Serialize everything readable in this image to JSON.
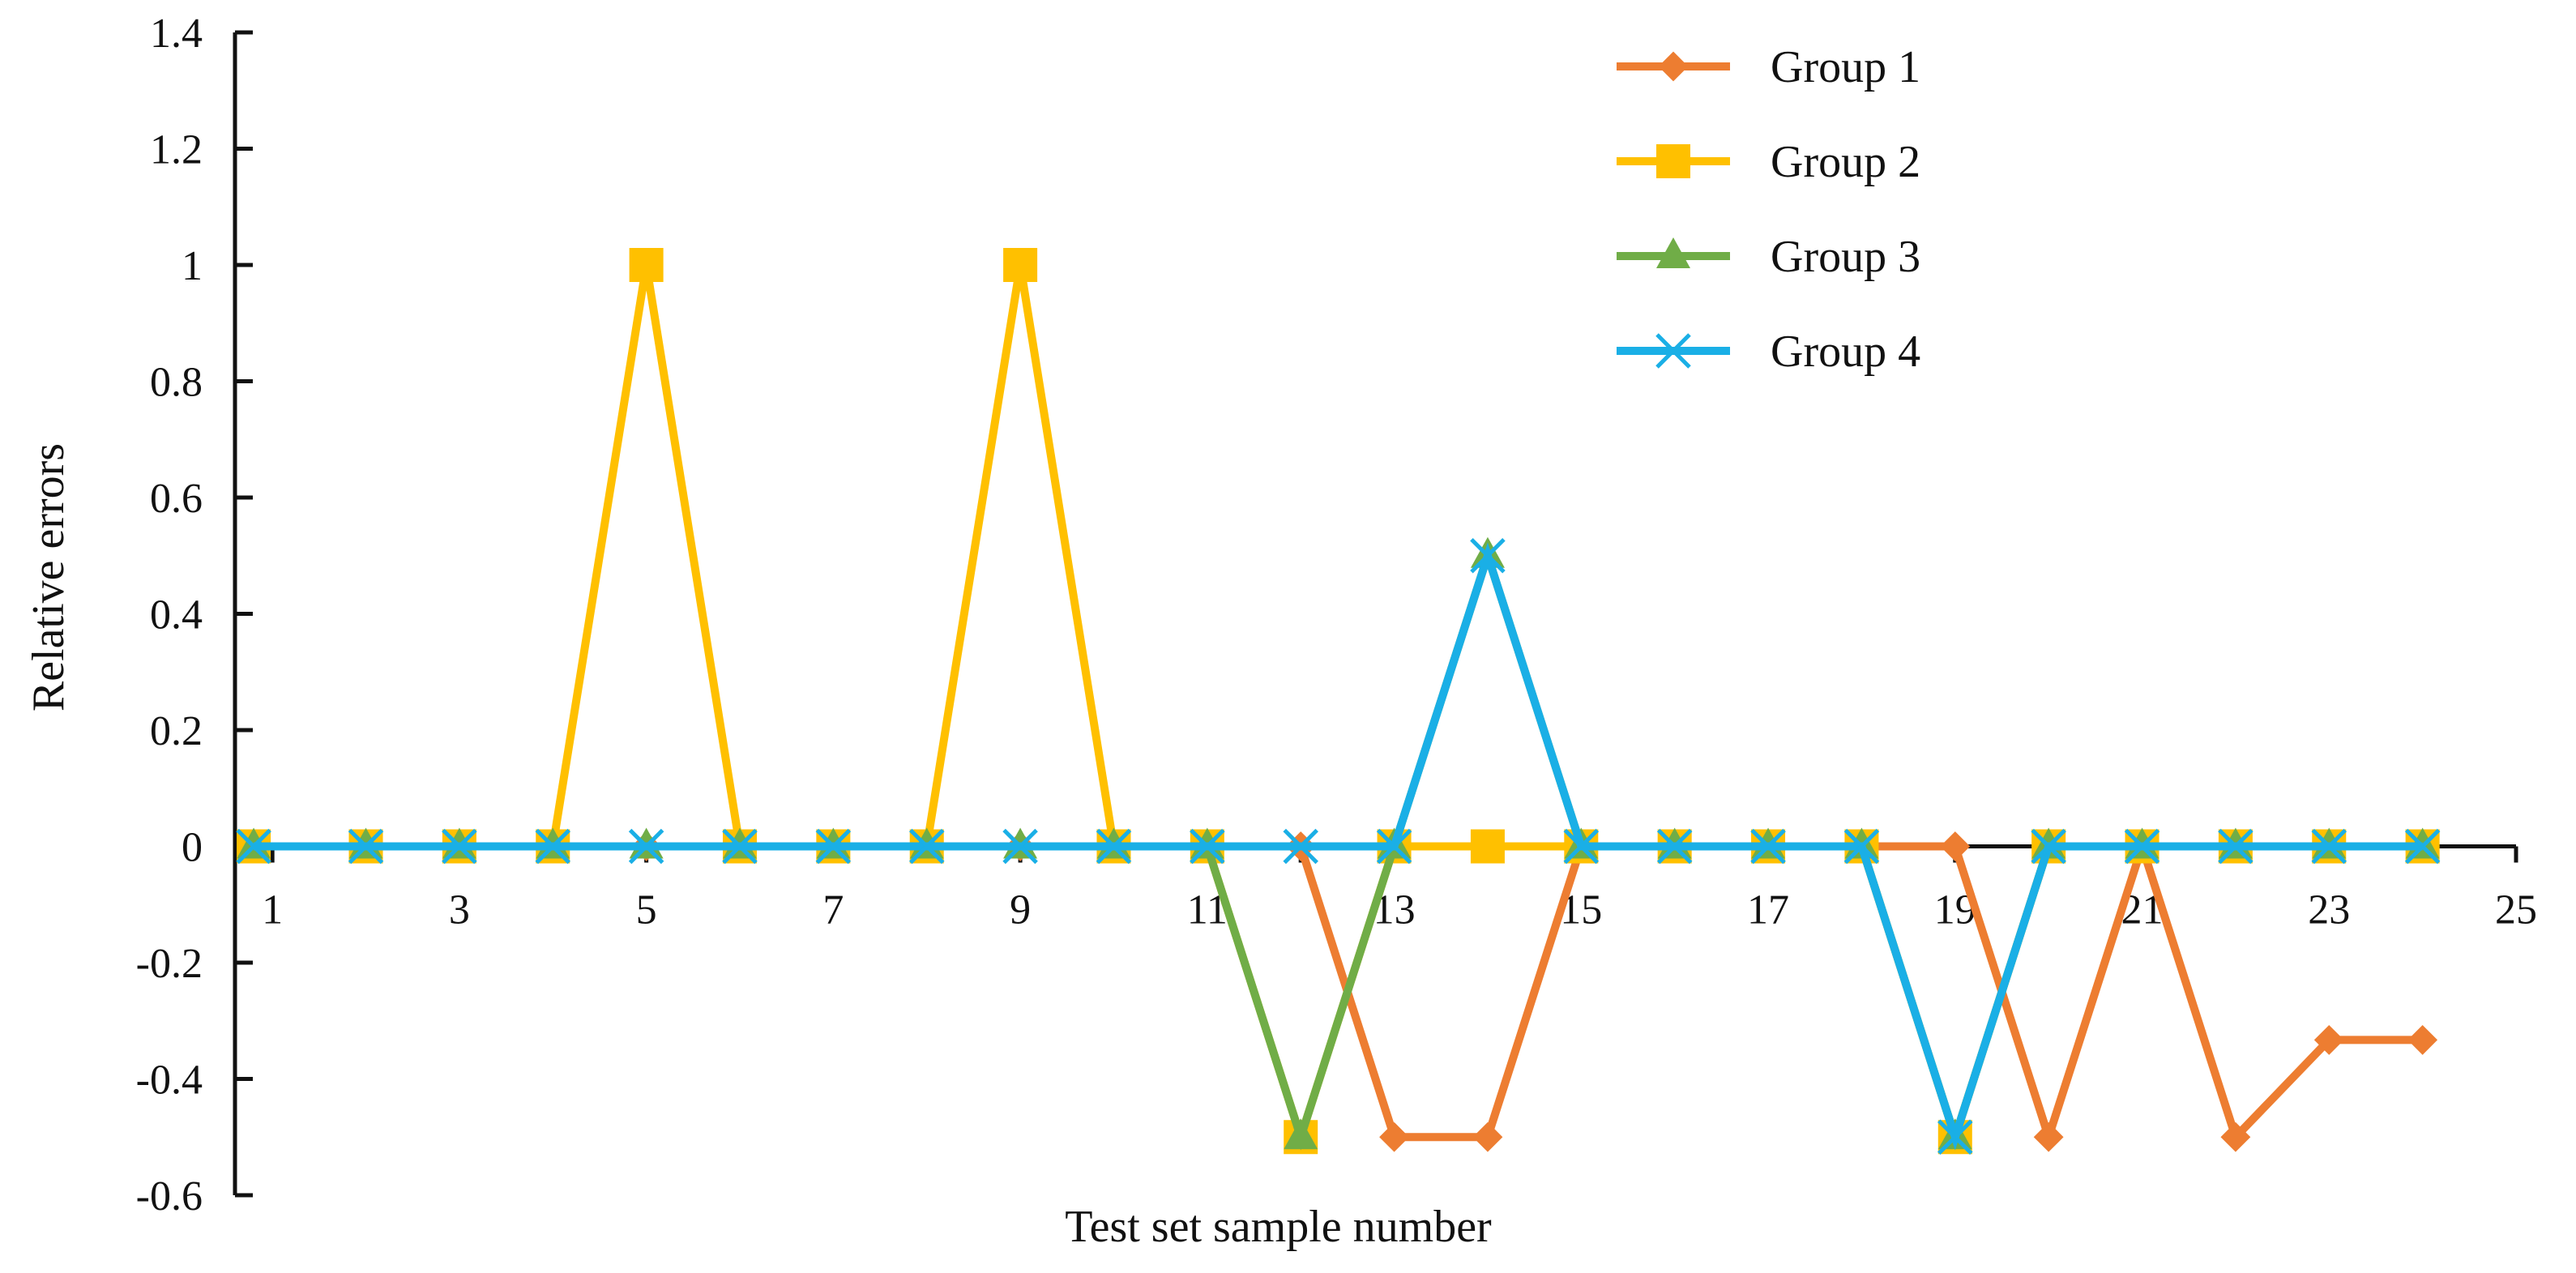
{
  "chart_data": {
    "type": "line",
    "title": "",
    "xlabel": "Test set sample number",
    "ylabel": "Relative errors",
    "xlim": [
      0.6,
      25
    ],
    "ylim": [
      -0.6,
      1.4
    ],
    "x_ticks": [
      1,
      3,
      5,
      7,
      9,
      11,
      13,
      15,
      17,
      19,
      21,
      23,
      25
    ],
    "y_ticks": [
      1.4,
      1.2,
      1,
      0.8,
      0.6,
      0.4,
      0.2,
      0,
      -0.2,
      -0.4,
      -0.6
    ],
    "y_tick_labels": [
      "1.4",
      "1.2",
      "1",
      "0.8",
      "0.6",
      "0.4",
      "0.2",
      "0",
      "-0.2",
      "-0.4",
      "-0.6"
    ],
    "grid": false,
    "legend_position": "top-right",
    "x": [
      0.8,
      2,
      3,
      4,
      5,
      6,
      7,
      8,
      9,
      10,
      11,
      12,
      13,
      14,
      15,
      16,
      17,
      18,
      19,
      20,
      21,
      22,
      23,
      24
    ],
    "series": [
      {
        "name": "Group 1",
        "color": "#ED7D31",
        "marker": "diamond",
        "values": [
          0,
          0,
          0,
          0,
          0,
          0,
          0,
          0,
          0,
          0,
          0,
          0,
          -0.5,
          -0.5,
          0,
          0,
          0,
          0,
          0,
          -0.5,
          0,
          -0.5,
          -0.333,
          -0.333
        ]
      },
      {
        "name": "Group 2",
        "color": "#FFC000",
        "marker": "square",
        "values": [
          0,
          0,
          0,
          0,
          1,
          0,
          0,
          0,
          1,
          0,
          0,
          -0.5,
          0,
          0,
          0,
          0,
          0,
          0,
          -0.5,
          0,
          0,
          0,
          0,
          0
        ]
      },
      {
        "name": "Group 3",
        "color": "#70AD47",
        "marker": "triangle",
        "values": [
          0,
          0,
          0,
          0,
          0,
          0,
          0,
          0,
          0,
          0,
          0,
          -0.5,
          0,
          0.5,
          0,
          0,
          0,
          0,
          -0.5,
          0,
          0,
          0,
          0,
          0
        ]
      },
      {
        "name": "Group 4",
        "color": "#1AAFE6",
        "marker": "x",
        "values": [
          0,
          0,
          0,
          0,
          0,
          0,
          0,
          0,
          0,
          0,
          0,
          0,
          0,
          0.5,
          0,
          0,
          0,
          0,
          -0.5,
          0,
          0,
          0,
          0,
          0
        ]
      }
    ]
  }
}
